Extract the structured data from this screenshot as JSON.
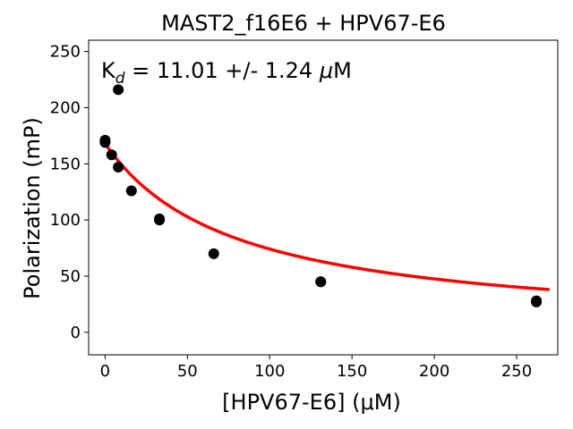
{
  "chart_data": {
    "type": "scatter",
    "title": "MAST2_f16E6 + HPV67-E6",
    "xlabel": "[HPV67-E6] (μM)",
    "ylabel": "Polarization (mP)",
    "xlim": [
      -10,
      275
    ],
    "ylim": [
      -20,
      260
    ],
    "xticks": [
      0,
      50,
      100,
      150,
      200,
      250
    ],
    "yticks": [
      0,
      50,
      100,
      150,
      200,
      250
    ],
    "annotation": {
      "prefix": "K",
      "subscript": "d",
      "text": " = 11.01 +/- 1.24 ",
      "unit_mu": "μ",
      "unit": "M"
    },
    "fit_color": "#ff0000",
    "point_color": "#000000",
    "fit": {
      "model": "hyperbolic-decay",
      "top": 168,
      "bottom": 0,
      "x_half": 79,
      "x_range": [
        0,
        270
      ]
    },
    "series": [
      {
        "name": "data",
        "x": [
          0,
          0,
          4,
          8,
          8,
          16,
          33,
          33,
          66,
          131,
          131,
          262,
          262
        ],
        "y": [
          171,
          169,
          158,
          147,
          216,
          126,
          101,
          100,
          70,
          45,
          45,
          28,
          27
        ]
      }
    ]
  }
}
